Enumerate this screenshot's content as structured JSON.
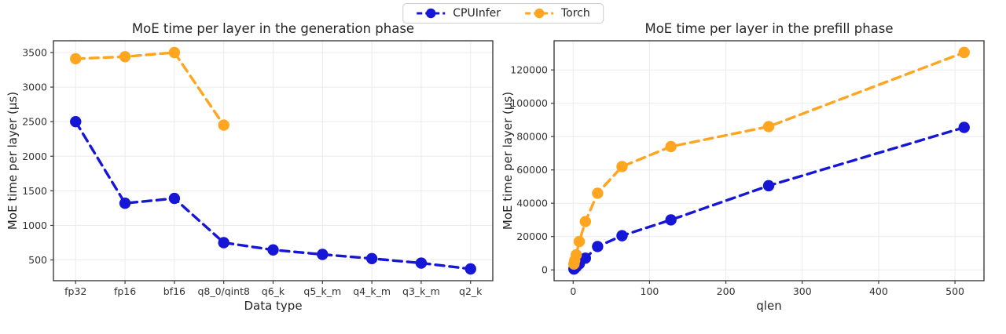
{
  "legend": {
    "items": [
      {
        "label": "CPUInfer",
        "color": "#1616d6"
      },
      {
        "label": "Torch",
        "color": "#ffa51f"
      }
    ]
  },
  "chart_data": [
    {
      "type": "line",
      "title": "MoE time per layer in the generation phase",
      "xlabel": "Data type",
      "ylabel": "MoE time per layer (µs)",
      "categories": [
        "fp32",
        "fp16",
        "bf16",
        "q8_0/qint8",
        "q6_k",
        "q5_k_m",
        "q4_k_m",
        "q3_k_m",
        "q2_k"
      ],
      "yticks": [
        500,
        1000,
        1500,
        2000,
        2500,
        3000,
        3500
      ],
      "ylim": [
        200,
        3670
      ],
      "grid": true,
      "line_style": "dashed",
      "legend_position": "figure top center",
      "series": [
        {
          "name": "CPUInfer",
          "color": "#1616d6",
          "values": [
            2500,
            1320,
            1390,
            750,
            645,
            580,
            520,
            455,
            370
          ]
        },
        {
          "name": "Torch",
          "color": "#ffa51f",
          "values": [
            3410,
            3440,
            3500,
            2450,
            null,
            null,
            null,
            null,
            null
          ]
        }
      ]
    },
    {
      "type": "line",
      "title": "MoE time per layer in the prefill phase",
      "xlabel": "qlen",
      "ylabel": "MoE time per layer (µs)",
      "x": [
        1,
        2,
        4,
        8,
        16,
        32,
        64,
        128,
        256,
        512
      ],
      "xticks": [
        0,
        100,
        200,
        300,
        400,
        500
      ],
      "yticks": [
        0,
        20000,
        40000,
        60000,
        80000,
        100000,
        120000
      ],
      "xlim": [
        -25,
        538
      ],
      "ylim": [
        -6500,
        137500
      ],
      "grid": true,
      "line_style": "dashed",
      "series": [
        {
          "name": "CPUInfer",
          "color": "#1616d6",
          "values": [
            500,
            900,
            1800,
            3600,
            7000,
            14000,
            20500,
            30000,
            50500,
            85500
          ]
        },
        {
          "name": "Torch",
          "color": "#ffa51f",
          "values": [
            3500,
            5600,
            9000,
            17000,
            29000,
            46000,
            62000,
            74000,
            86000,
            130500
          ]
        }
      ]
    }
  ]
}
